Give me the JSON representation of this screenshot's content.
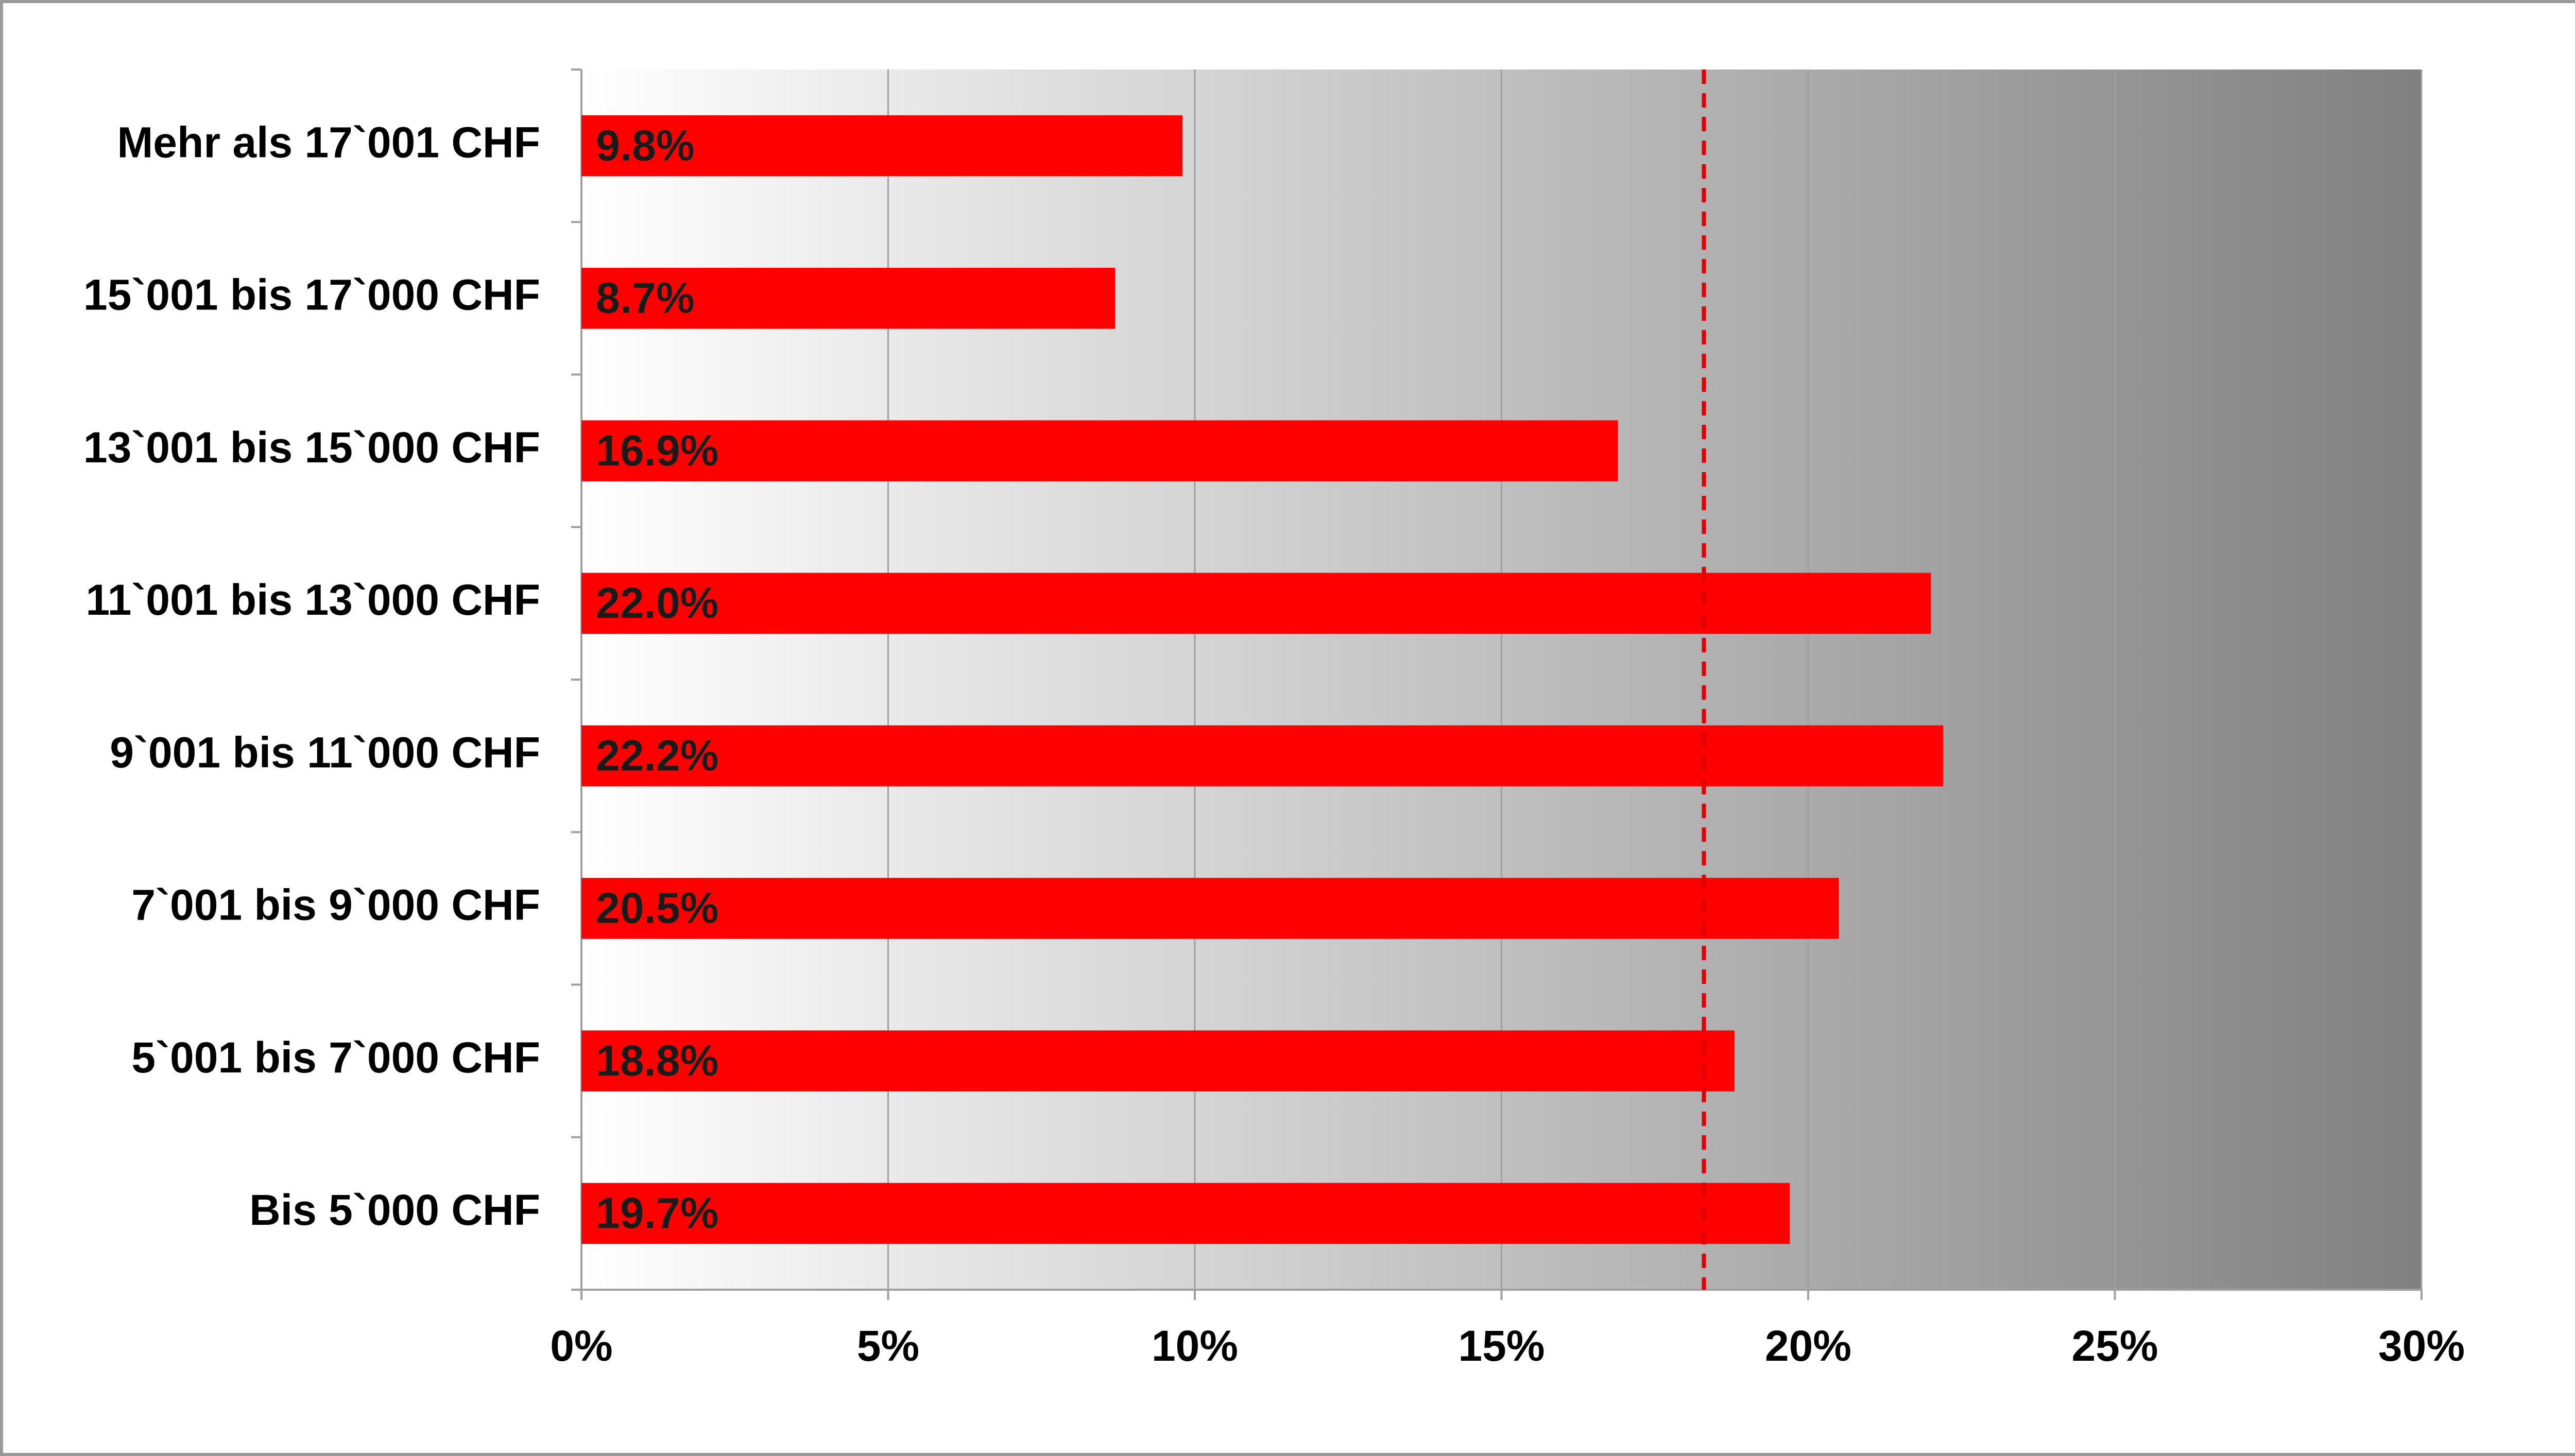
{
  "chart_data": {
    "type": "barh",
    "categories": [
      "Mehr als 17`001 CHF",
      "15`001 bis 17`000 CHF",
      "13`001 bis 15`000 CHF",
      "11`001 bis 13`000 CHF",
      "9`001 bis 11`000 CHF",
      "7`001 bis 9`000 CHF",
      "5`001 bis 7`000 CHF",
      "Bis 5`000 CHF"
    ],
    "values": [
      9.8,
      8.7,
      16.9,
      22.0,
      22.2,
      20.5,
      18.8,
      19.7
    ],
    "value_labels": [
      "9.8%",
      "8.7%",
      "16.9%",
      "22.0%",
      "22.2%",
      "20.5%",
      "18.8%",
      "19.7%"
    ],
    "color": "#ff0000",
    "xlim": [
      0,
      30
    ],
    "xticks": [
      {
        "value": 0,
        "label": "0%"
      },
      {
        "value": 5,
        "label": "5%"
      },
      {
        "value": 10,
        "label": "10%"
      },
      {
        "value": 15,
        "label": "15%"
      },
      {
        "value": 20,
        "label": "20%"
      },
      {
        "value": 25,
        "label": "25%"
      },
      {
        "value": 30,
        "label": "30%"
      }
    ],
    "grid": true,
    "plot_background": [
      "#ffffff",
      "#808080"
    ],
    "reference_line": {
      "value": 18.3,
      "color": "#e00000",
      "style": "dashed"
    }
  }
}
